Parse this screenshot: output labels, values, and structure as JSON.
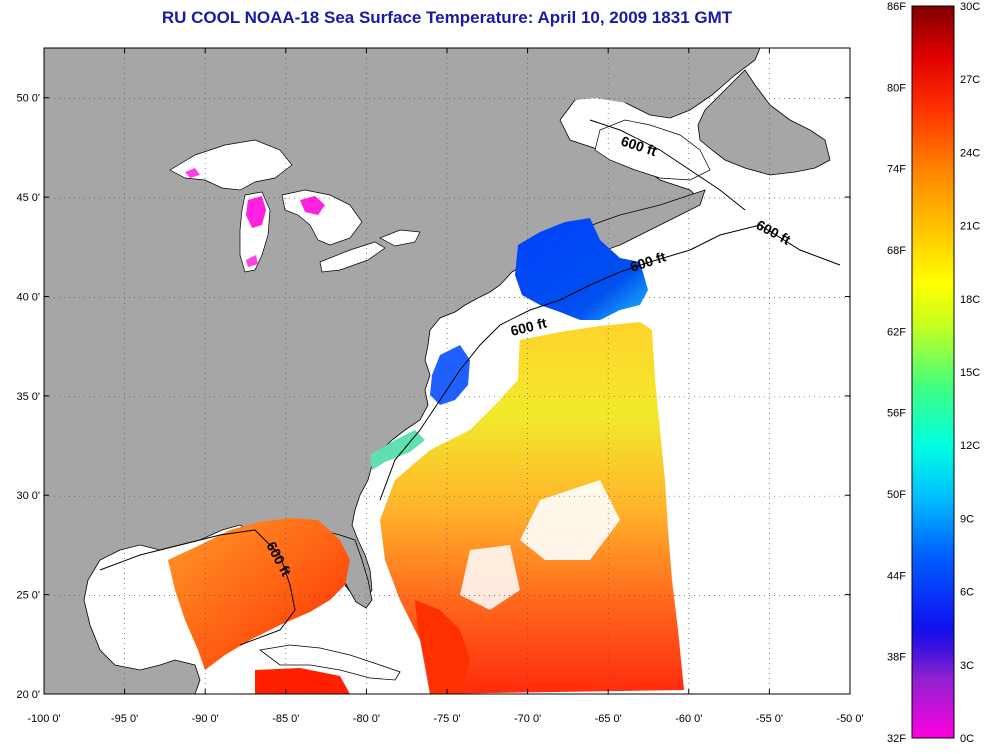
{
  "title": "RU COOL  NOAA-18  Sea Surface Temperature:  April 10, 2009 1831 GMT",
  "map": {
    "lon_range": [
      -100,
      -50
    ],
    "lat_range": [
      20,
      52.5
    ],
    "lon_ticks": [
      {
        "value": -100,
        "label": "-100 0'"
      },
      {
        "value": -95,
        "label": "-95 0'"
      },
      {
        "value": -90,
        "label": "-90 0'"
      },
      {
        "value": -85,
        "label": "-85 0'"
      },
      {
        "value": -80,
        "label": "-80 0'"
      },
      {
        "value": -75,
        "label": "-75 0'"
      },
      {
        "value": -70,
        "label": "-70 0'"
      },
      {
        "value": -65,
        "label": "-65 0'"
      },
      {
        "value": -60,
        "label": "-60 0'"
      },
      {
        "value": -55,
        "label": "-55 0'"
      },
      {
        "value": -50,
        "label": "-50 0'"
      }
    ],
    "lat_ticks": [
      {
        "value": 20,
        "label": "20 0'"
      },
      {
        "value": 25,
        "label": "25 0'"
      },
      {
        "value": 30,
        "label": "30 0'"
      },
      {
        "value": 35,
        "label": "35 0'"
      },
      {
        "value": 40,
        "label": "40 0'"
      },
      {
        "value": 45,
        "label": "45 0'"
      },
      {
        "value": 50,
        "label": "50 0'"
      }
    ],
    "grid": "dotted",
    "contour_labels": [
      "600 ft",
      "600 ft",
      "600 ft",
      "600 ft",
      "600 ft"
    ],
    "colors": {
      "land": "#a6a6a6",
      "water_no_data": "#ffffff",
      "title": "#1a1aa8"
    }
  },
  "colorbar": {
    "fahrenheit_labels": [
      "86F",
      "80F",
      "74F",
      "68F",
      "62F",
      "56F",
      "50F",
      "44F",
      "38F",
      "32F"
    ],
    "celsius_labels": [
      "30C",
      "27C",
      "24C",
      "21C",
      "18C",
      "15C",
      "12C",
      "9C",
      "6C",
      "3C",
      "0C"
    ],
    "range_c": [
      0,
      30
    ],
    "colors": [
      "#ff00e0",
      "#9020d0",
      "#1010f0",
      "#0060ff",
      "#00c0ff",
      "#00ffe0",
      "#40ff80",
      "#c0ff20",
      "#ffff00",
      "#ffc000",
      "#ff8000",
      "#ff3000",
      "#e00000",
      "#800000"
    ]
  }
}
